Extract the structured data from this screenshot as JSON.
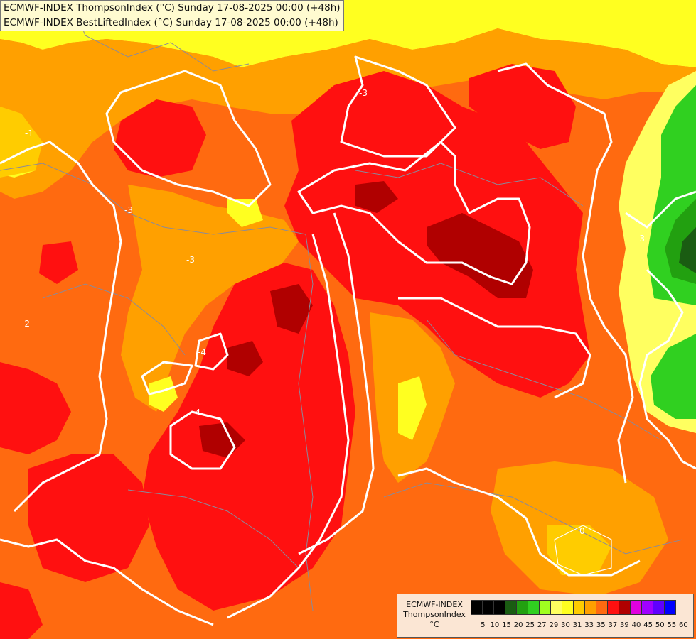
{
  "title_lines": [
    "ECMWF-INDEX ThompsonIndex (°C) Sunday 17-08-2025 00:00 (+48h)",
    "ECMWF-INDEX BestLiftedIndex (°C) Sunday 17-08-2025 00:00 (+48h)"
  ],
  "legend": {
    "title1": "ECMWF-INDEX",
    "title2": "ThompsonIndex",
    "unit": "°C",
    "labels": [
      "5",
      "10",
      "15",
      "20",
      "25",
      "27",
      "29",
      "30",
      "31",
      "33",
      "35",
      "37",
      "39",
      "40",
      "45",
      "50",
      "55",
      "60"
    ],
    "colors": [
      "#000000",
      "#000000",
      "#000000",
      "#1a5c12",
      "#22a010",
      "#30d020",
      "#a0ff20",
      "#ffff60",
      "#ffff20",
      "#ffcc00",
      "#ffa000",
      "#ff6a10",
      "#ff1010",
      "#b00000",
      "#e000e0",
      "#a000ff",
      "#6000ff",
      "#0000ff"
    ]
  },
  "contour_labels": [
    "-3",
    "-1",
    "-3",
    "-3",
    "-2",
    "-4",
    "-4",
    "-3",
    "0"
  ],
  "field_colors": {
    "yellow": "#ffff20",
    "lightyellow": "#ffff60",
    "gold": "#ffcc00",
    "orange": "#ffa000",
    "darkorange": "#ff6a10",
    "red": "#ff1010",
    "darkred": "#b00000",
    "green": "#22a010",
    "lightgreen": "#30d020",
    "darkgreen": "#1a5c12"
  }
}
